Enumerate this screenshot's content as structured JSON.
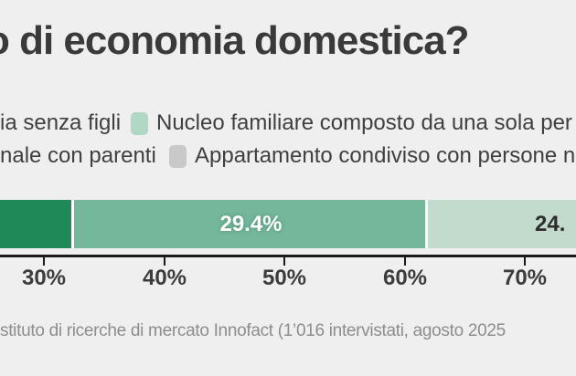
{
  "title": "o di economia domestica?",
  "colors": {
    "background": "#efefef",
    "segment_dark": "#1f8a57",
    "segment_medium": "#74b79a",
    "segment_light": "#c2dbcc",
    "legend_swatch_green": "#b1d8c5",
    "legend_swatch_gray": "#c9c9c9",
    "axis": "#1a1a1a",
    "source_text": "#8d8d8d"
  },
  "legend": {
    "rows": [
      {
        "left_text": "ia senza figli",
        "swatch_color_key": "legend_swatch_green",
        "right_text": "Nucleo familiare composto da una sola per"
      },
      {
        "left_text": "nale con parenti",
        "swatch_color_key": "legend_swatch_gray",
        "right_text": "Appartamento condiviso con persone no"
      }
    ]
  },
  "chart_data": {
    "type": "bar",
    "subtype": "stacked-horizontal",
    "visible_x_range_pct": [
      26.4,
      74.2
    ],
    "segments": [
      {
        "name": "dark-green",
        "color": "#1f8a57",
        "value_label": "",
        "visible_pct_span": [
          26.4,
          32.3
        ]
      },
      {
        "name": "medium-green",
        "color": "#74b79a",
        "value": 29.4,
        "value_label": "29.4%",
        "pct_span": [
          32.3,
          61.7
        ]
      },
      {
        "name": "light-green",
        "color": "#c2dbcc",
        "value_label": "24.",
        "visible_pct_span": [
          61.7,
          74.2
        ]
      }
    ],
    "x_tick_labels": [
      "30%",
      "40%",
      "50%",
      "60%",
      "70%"
    ],
    "x_tick_values": [
      30,
      40,
      50,
      60,
      70
    ],
    "grid": false,
    "legend_position": "top"
  },
  "bar_labels": {
    "medium": "29.4%",
    "light_partial": "24."
  },
  "source": "stituto di ricerche di mercato Innofact (1’016 intervistati, agosto 2025"
}
